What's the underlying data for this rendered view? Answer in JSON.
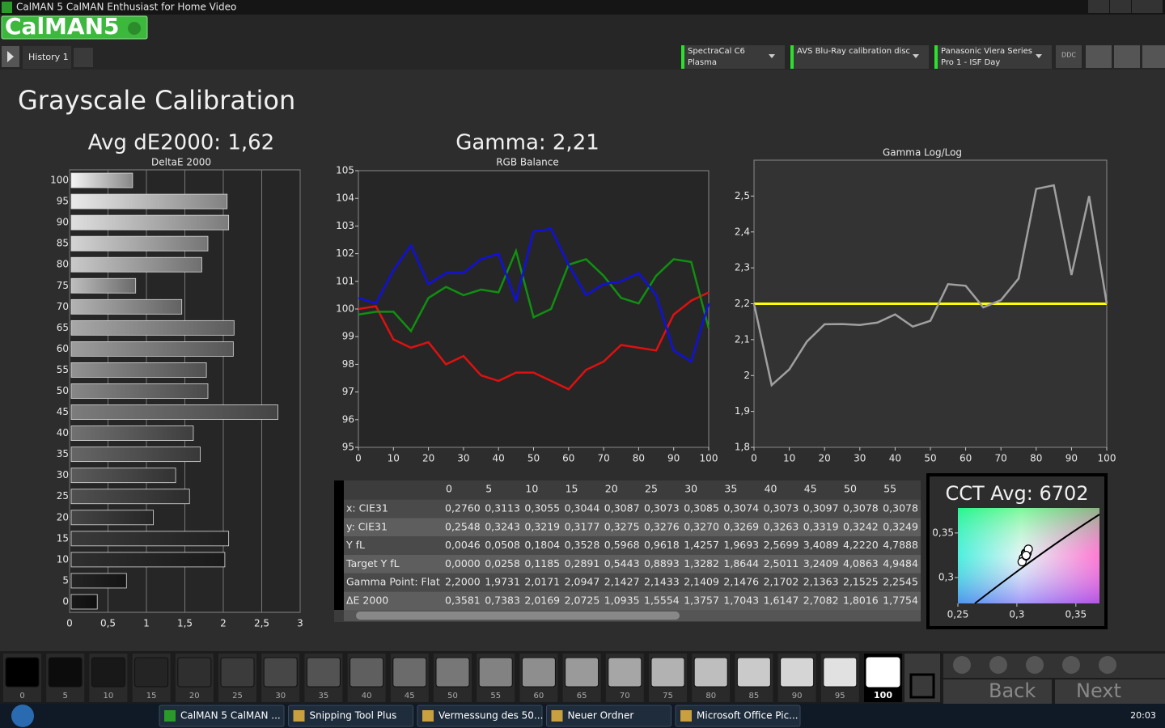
{
  "window": {
    "title": "CalMAN 5 CalMAN Enthusiast for Home Video"
  },
  "logo": "CalMAN5",
  "tabs": [
    "History 1"
  ],
  "devices": [
    {
      "name": "SpectraCal C6",
      "detail": "Plasma"
    },
    {
      "name": "AVS Blu-Ray calibration disc"
    },
    {
      "name": "Panasonic Viera Series",
      "detail": "Pro 1 - ISF Day"
    }
  ],
  "ddc": "DDC",
  "page_title": "Grayscale Calibration",
  "chart_data": [
    {
      "type": "hbar",
      "title": "Avg dE2000: 1,62",
      "subtitle": "DeltaE 2000",
      "categories": [
        "100",
        "95",
        "90",
        "85",
        "80",
        "75",
        "70",
        "65",
        "60",
        "55",
        "50",
        "45",
        "40",
        "35",
        "30",
        "25",
        "20",
        "15",
        "10",
        "5",
        "0"
      ],
      "values": [
        0.82,
        2.05,
        2.07,
        1.8,
        1.72,
        0.86,
        1.46,
        2.14,
        2.13,
        1.78,
        1.8,
        2.71,
        1.61,
        1.7,
        1.38,
        1.56,
        1.09,
        2.07,
        2.02,
        0.74,
        0.36
      ],
      "xlim": [
        0,
        3
      ],
      "xticks": [
        0,
        {
          "value": 0.5,
          "label": "0,5"
        },
        1,
        {
          "value": 1.5,
          "label": "1,5"
        },
        2,
        {
          "value": 2.5,
          "label": "2,5"
        },
        3
      ],
      "grid": true
    },
    {
      "type": "line",
      "title": "Gamma: 2,21",
      "subtitle": "RGB Balance",
      "x": [
        0,
        5,
        10,
        15,
        20,
        25,
        30,
        35,
        40,
        45,
        50,
        55,
        60,
        65,
        70,
        75,
        80,
        85,
        90,
        95,
        100
      ],
      "series": [
        {
          "color": "#e01010",
          "values": [
            100.0,
            100.1,
            98.9,
            98.6,
            98.8,
            98.0,
            98.3,
            97.6,
            97.4,
            97.7,
            97.7,
            97.4,
            97.1,
            97.8,
            98.1,
            98.7,
            98.6,
            98.5,
            99.8,
            100.3,
            100.6
          ]
        },
        {
          "color": "#109010",
          "values": [
            99.8,
            99.9,
            99.9,
            99.2,
            100.4,
            100.8,
            100.5,
            100.7,
            100.6,
            102.1,
            99.7,
            100.0,
            101.6,
            101.8,
            101.2,
            100.4,
            100.2,
            101.2,
            101.8,
            101.7,
            99.3
          ]
        },
        {
          "color": "#1010e0",
          "values": [
            100.4,
            100.2,
            101.4,
            102.3,
            100.9,
            101.3,
            101.3,
            101.8,
            102.0,
            100.3,
            102.8,
            102.9,
            101.6,
            100.5,
            100.9,
            101.0,
            101.3,
            100.5,
            98.5,
            98.1,
            100.2
          ]
        }
      ],
      "xlim": [
        0,
        100
      ],
      "xticks": [
        0,
        10,
        20,
        30,
        40,
        50,
        60,
        70,
        80,
        90,
        100
      ],
      "ylim": [
        95,
        105
      ],
      "yticks": [
        95,
        96,
        97,
        98,
        99,
        100,
        101,
        102,
        103,
        104,
        105
      ]
    },
    {
      "type": "line",
      "subtitle": "Gamma Log/Log",
      "x": [
        0,
        5,
        10,
        15,
        20,
        25,
        30,
        35,
        40,
        45,
        50,
        55,
        60,
        65,
        70,
        75,
        80,
        85,
        90,
        95,
        100
      ],
      "series": [
        {
          "color": "#a0a0a0",
          "values": [
            2.2,
            1.9731,
            2.0171,
            2.0947,
            2.1427,
            2.1433,
            2.1409,
            2.1476,
            2.1702,
            2.1363,
            2.1525,
            2.2545,
            2.25,
            2.19,
            2.21,
            2.27,
            2.52,
            2.53,
            2.28,
            2.5,
            2.2
          ]
        }
      ],
      "reference_line": {
        "value": 2.2,
        "color": "#ffff00"
      },
      "xlim": [
        0,
        100
      ],
      "xticks": [
        0,
        10,
        20,
        30,
        40,
        50,
        60,
        70,
        80,
        90,
        100
      ],
      "ylim": [
        1.8,
        2.6
      ],
      "yticks": [
        {
          "value": 1.8,
          "label": "1,8"
        },
        {
          "value": 1.9,
          "label": "1,9"
        },
        2,
        {
          "value": 2.1,
          "label": "2,1"
        },
        {
          "value": 2.2,
          "label": "2,2"
        },
        {
          "value": 2.3,
          "label": "2,3"
        },
        {
          "value": 2.4,
          "label": "2,4"
        },
        {
          "value": 2.5,
          "label": "2,5"
        }
      ]
    },
    {
      "type": "scatter",
      "title": "CCT Avg: 6702",
      "x": [
        0.3055,
        0.3044,
        0.3087,
        0.3073,
        0.3085,
        0.3074,
        0.3073,
        0.3097,
        0.3078,
        0.3078
      ],
      "values": [
        0.3219,
        0.3177,
        0.3275,
        0.3276,
        0.327,
        0.3269,
        0.3263,
        0.3319,
        0.3242,
        0.3249
      ],
      "xlim": [
        0.25,
        0.37
      ],
      "xticks": [
        {
          "value": 0.25,
          "label": "0,25"
        },
        {
          "value": 0.3,
          "label": "0,3"
        },
        {
          "value": 0.35,
          "label": "0,35"
        }
      ],
      "ylim": [
        0.271,
        0.378
      ],
      "yticks": [
        {
          "value": 0.3,
          "label": "0,3"
        },
        {
          "value": 0.35,
          "label": "0,35"
        }
      ]
    }
  ],
  "table": {
    "header": [
      "0",
      "5",
      "10",
      "15",
      "20",
      "25",
      "30",
      "35",
      "40",
      "45",
      "50",
      "55"
    ],
    "rows": [
      {
        "label": "x: CIE31",
        "cells": [
          "0,2760",
          "0,3113",
          "0,3055",
          "0,3044",
          "0,3087",
          "0,3073",
          "0,3085",
          "0,3074",
          "0,3073",
          "0,3097",
          "0,3078",
          "0,3078"
        ]
      },
      {
        "label": "y: CIE31",
        "cells": [
          "0,2548",
          "0,3243",
          "0,3219",
          "0,3177",
          "0,3275",
          "0,3276",
          "0,3270",
          "0,3269",
          "0,3263",
          "0,3319",
          "0,3242",
          "0,3249"
        ]
      },
      {
        "label": "Y fL",
        "cells": [
          "0,0046",
          "0,0508",
          "0,1804",
          "0,3528",
          "0,5968",
          "0,9618",
          "1,4257",
          "1,9693",
          "2,5699",
          "3,4089",
          "4,2220",
          "4,7888"
        ]
      },
      {
        "label": "Target Y fL",
        "cells": [
          "0,0000",
          "0,0258",
          "0,1185",
          "0,2891",
          "0,5443",
          "0,8893",
          "1,3282",
          "1,8644",
          "2,5011",
          "3,2409",
          "4,0863",
          "4,9484"
        ]
      },
      {
        "label": "Gamma Point: Flat",
        "cells": [
          "2,2000",
          "1,9731",
          "2,0171",
          "2,0947",
          "2,1427",
          "2,1433",
          "2,1409",
          "2,1476",
          "2,1702",
          "2,1363",
          "2,1525",
          "2,2545"
        ]
      },
      {
        "label": "ΔE 2000",
        "cells": [
          "0,3581",
          "0,7383",
          "2,0169",
          "2,0725",
          "1,0935",
          "1,5554",
          "1,3757",
          "1,7043",
          "1,6147",
          "2,7082",
          "1,8016",
          "1,7754"
        ]
      }
    ]
  },
  "swatches": [
    "0",
    "5",
    "10",
    "15",
    "20",
    "25",
    "30",
    "35",
    "40",
    "45",
    "50",
    "55",
    "60",
    "65",
    "70",
    "75",
    "80",
    "85",
    "90",
    "95",
    "100"
  ],
  "navigation": {
    "back": "Back",
    "next": "Next"
  },
  "taskbar": {
    "items": [
      "CalMAN 5 CalMAN ...",
      "Snipping Tool Plus",
      "Vermessung des 50...",
      "Neuer Ordner",
      "Microsoft Office Pic..."
    ],
    "clock": "20:03"
  }
}
